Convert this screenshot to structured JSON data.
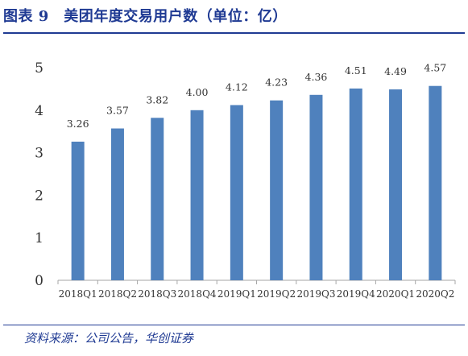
{
  "header": {
    "title": "图表 9　美团年度交易用户数（单位：亿）"
  },
  "footer": {
    "source": "资料来源：公司公告，华创证券"
  },
  "chart_data": {
    "type": "bar",
    "categories": [
      "2018Q1",
      "2018Q2",
      "2018Q3",
      "2018Q4",
      "2019Q1",
      "2019Q2",
      "2019Q3",
      "2019Q4",
      "2020Q1",
      "2020Q2"
    ],
    "values": [
      3.26,
      3.57,
      3.82,
      4.0,
      4.12,
      4.23,
      4.36,
      4.51,
      4.49,
      4.57
    ],
    "value_labels": [
      "3.26",
      "3.57",
      "3.82",
      "4.00",
      "4.12",
      "4.23",
      "4.36",
      "4.51",
      "4.49",
      "4.57"
    ],
    "y_ticks": [
      "0",
      "1",
      "2",
      "3",
      "4",
      "5"
    ],
    "ylim": [
      0,
      5
    ],
    "bar_color": "#4f81bd",
    "grid": false,
    "legend": "none"
  }
}
